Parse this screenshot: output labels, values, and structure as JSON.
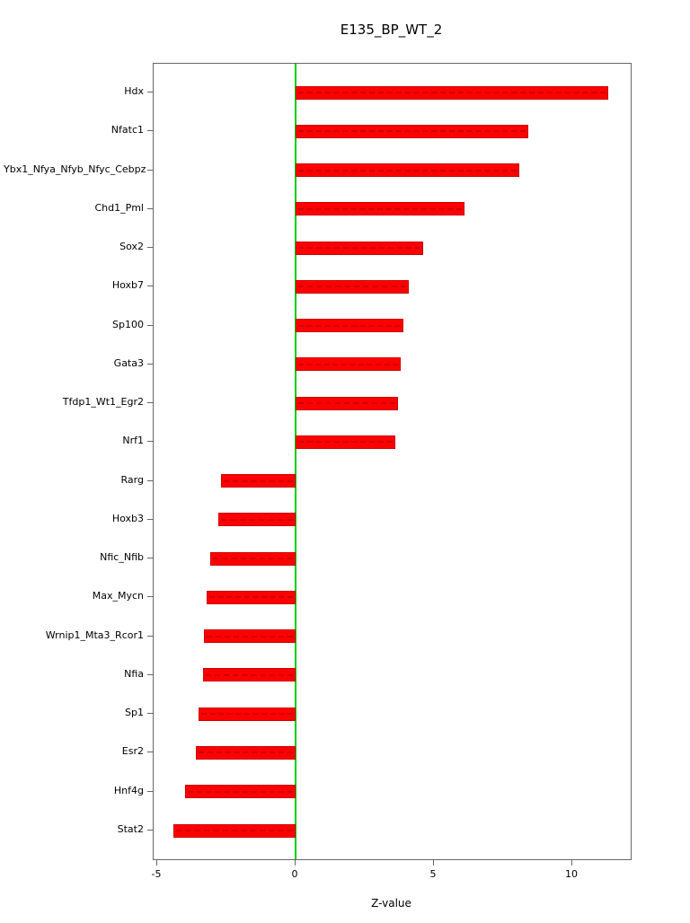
{
  "title": "E135_BP_WT_2",
  "chart_data": {
    "type": "bar",
    "orientation": "horizontal",
    "title": "E135_BP_WT_2",
    "xlabel": "Z-value",
    "ylabel": "",
    "categories": [
      "Hdx",
      "Nfatc1",
      "Ybx1_Nfya_Nfyb_Nfyc_Cebpz",
      "Chd1_Pml",
      "Sox2",
      "Hoxb7",
      "Sp100",
      "Gata3",
      "Tfdp1_Wt1_Egr2",
      "Nrf1",
      "Rarg",
      "Hoxb3",
      "Nfic_Nfib",
      "Max_Mycn",
      "Wrnip1_Mta3_Rcor1",
      "Nfia",
      "Sp1",
      "Esr2",
      "Hnf4g",
      "Stat2"
    ],
    "values": [
      11.3,
      8.4,
      8.1,
      6.1,
      4.6,
      4.1,
      3.9,
      3.8,
      3.7,
      3.6,
      -2.7,
      -2.8,
      -3.1,
      -3.2,
      -3.3,
      -3.35,
      -3.5,
      -3.6,
      -4.0,
      -4.4
    ],
    "xlim": [
      -5.13,
      12.11
    ],
    "xticks": [
      -5,
      0,
      5,
      10
    ],
    "grid": false,
    "legend": false,
    "bar_color": "#FF0000",
    "bar_border_color": "#CC0000",
    "zero_line_color": "#00CC00",
    "axis_color": "#666666",
    "text_color": "#000000"
  }
}
